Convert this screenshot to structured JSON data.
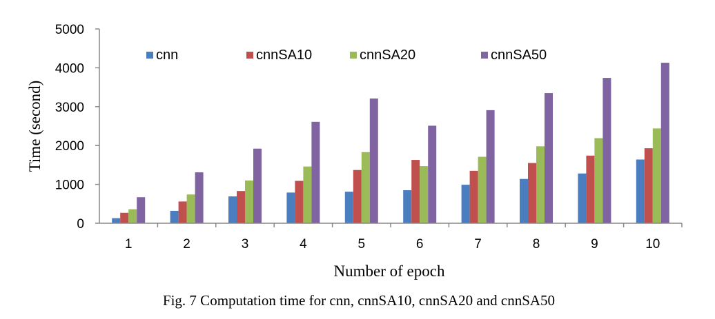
{
  "chart_data": {
    "type": "bar",
    "title": "",
    "caption": "Fig. 7 Computation time for cnn, cnnSA10, cnnSA20 and cnnSA50",
    "xlabel": "Number of epoch",
    "ylabel": "Time (second)",
    "ylim": [
      0,
      5000
    ],
    "yticks": [
      "0",
      "1000",
      "2000",
      "3000",
      "4000",
      "5000"
    ],
    "ytick_values": [
      0,
      1000,
      2000,
      3000,
      4000,
      5000
    ],
    "grid": false,
    "legend_position": "top",
    "categories": [
      "1",
      "2",
      "3",
      "4",
      "5",
      "6",
      "7",
      "8",
      "9",
      "10"
    ],
    "series": [
      {
        "name": "cnn",
        "color": "#4a7ebf",
        "values": [
          130,
          320,
          690,
          790,
          810,
          850,
          990,
          1140,
          1280,
          1640
        ]
      },
      {
        "name": "cnnSA10",
        "color": "#c0504d",
        "values": [
          270,
          560,
          830,
          1090,
          1370,
          1630,
          1350,
          1550,
          1740,
          1930
        ]
      },
      {
        "name": "cnnSA20",
        "color": "#9bbb59",
        "values": [
          360,
          740,
          1100,
          1460,
          1830,
          1470,
          1710,
          1980,
          2190,
          2440
        ]
      },
      {
        "name": "cnnSA50",
        "color": "#8064a2",
        "values": [
          670,
          1310,
          1920,
          2610,
          3210,
          2510,
          2910,
          3350,
          3740,
          4130
        ]
      }
    ]
  }
}
